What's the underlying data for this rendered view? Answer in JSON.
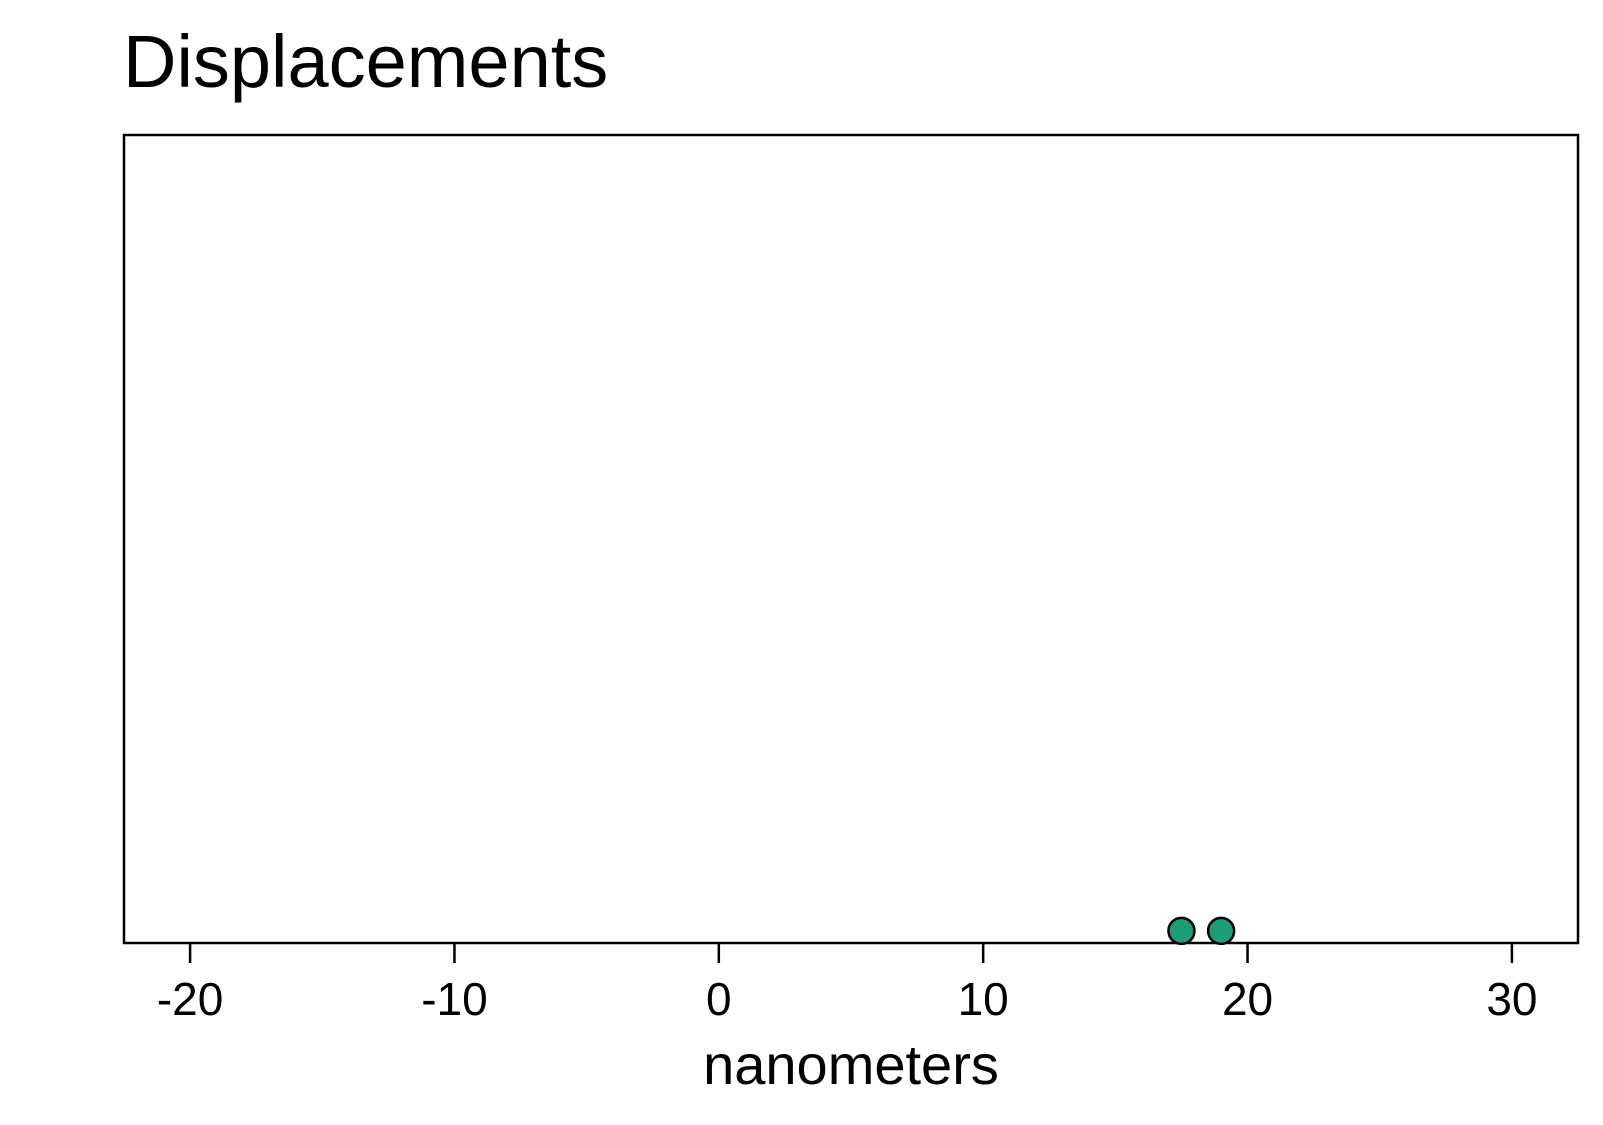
{
  "chart_data": {
    "type": "scatter",
    "title": "Displacements",
    "xlabel": "nanometers",
    "ylabel": "",
    "xlim": [
      -22.5,
      32.5
    ],
    "ylim": [
      0,
      1
    ],
    "x_ticks": [
      -20,
      -10,
      0,
      10,
      20,
      30
    ],
    "x_tick_labels": [
      "-20",
      "-10",
      "0",
      "10",
      "20",
      "30"
    ],
    "grid": false,
    "legend": "none",
    "series": [
      {
        "color": "#1b9e77",
        "edge_color": "#000000",
        "points": [
          {
            "x": 17.5,
            "y": 0.015
          },
          {
            "x": 19.0,
            "y": 0.015
          }
        ]
      }
    ]
  }
}
